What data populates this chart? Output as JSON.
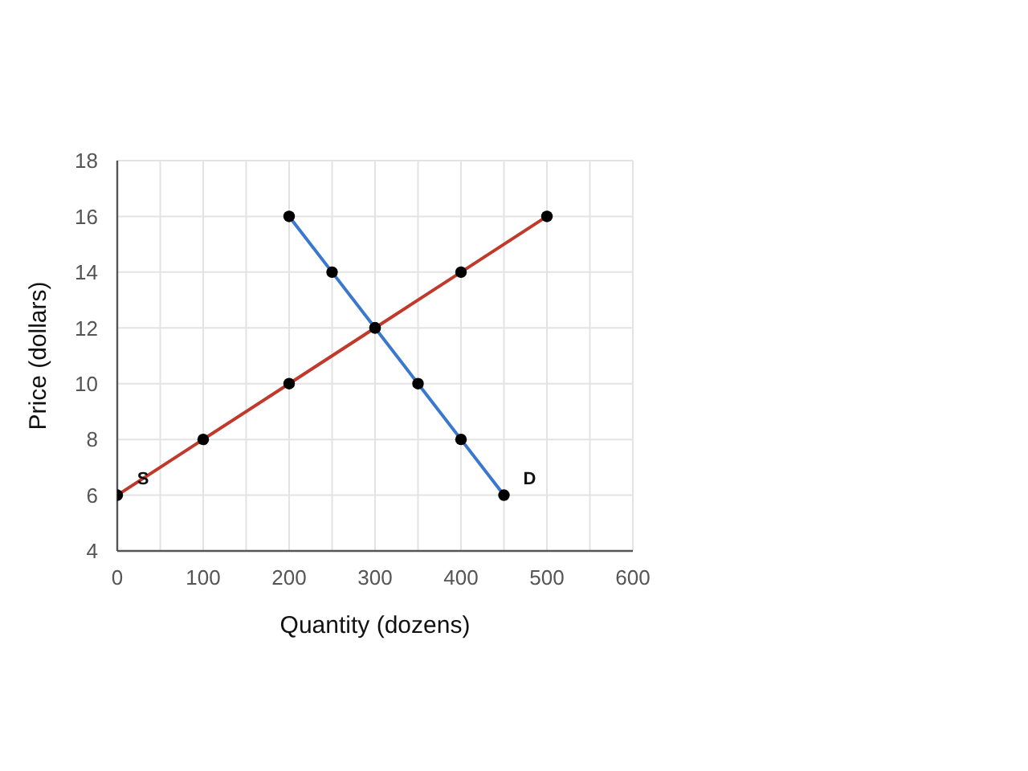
{
  "chart_data": {
    "type": "line",
    "xlabel": "Quantity (dozens)",
    "ylabel": "Price (dollars)",
    "series": [
      {
        "name": "S",
        "color": "#c0392b",
        "x": [
          0,
          100,
          200,
          300,
          400,
          500
        ],
        "values": [
          6,
          8,
          10,
          12,
          14,
          16
        ]
      },
      {
        "name": "D",
        "color": "#3a78cf",
        "x": [
          200,
          250,
          300,
          350,
          400,
          450
        ],
        "values": [
          16,
          14,
          12,
          10,
          8,
          6
        ]
      }
    ],
    "xlim": [
      0,
      600
    ],
    "xticks": [
      0,
      {
        "value": 50,
        "label": null
      },
      100,
      {
        "value": 150,
        "label": null
      },
      200,
      {
        "value": 250,
        "label": null
      },
      300,
      {
        "value": 350,
        "label": null
      },
      400,
      {
        "value": 450,
        "label": null
      },
      500,
      {
        "value": 550,
        "label": null
      },
      600
    ],
    "ylim": [
      4,
      18
    ],
    "yticks": [
      4,
      6,
      8,
      10,
      12,
      14,
      16,
      18
    ],
    "grid": true,
    "legend": false,
    "marker": "circle",
    "line_style": "solid"
  }
}
